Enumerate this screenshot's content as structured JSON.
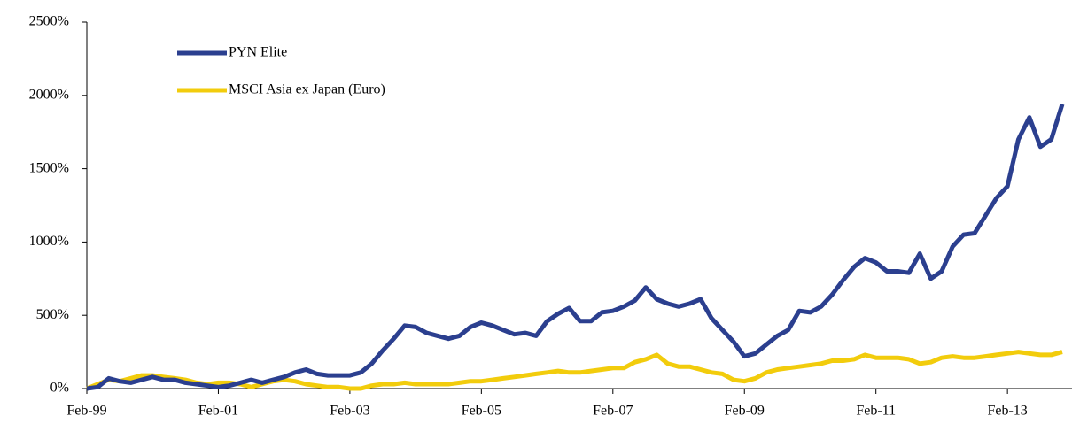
{
  "chart_data": {
    "type": "line",
    "categories": [
      "Feb-99",
      null,
      null,
      null,
      null,
      null,
      null,
      null,
      null,
      null,
      null,
      null,
      "Feb-01",
      null,
      null,
      null,
      null,
      null,
      null,
      null,
      null,
      null,
      null,
      null,
      "Feb-03",
      null,
      null,
      null,
      null,
      null,
      null,
      null,
      null,
      null,
      null,
      null,
      "Feb-05",
      null,
      null,
      null,
      null,
      null,
      null,
      null,
      null,
      null,
      null,
      null,
      "Feb-07",
      null,
      null,
      null,
      null,
      null,
      null,
      null,
      null,
      null,
      null,
      null,
      "Feb-09",
      null,
      null,
      null,
      null,
      null,
      null,
      null,
      null,
      null,
      null,
      null,
      "Feb-11",
      null,
      null,
      null,
      null,
      null,
      null,
      null,
      null,
      null,
      null,
      null,
      "Feb-13",
      null,
      null,
      null,
      null,
      null
    ],
    "series": [
      {
        "name": "PYN Elite",
        "color": "#2b3f8f",
        "values": [
          0,
          10,
          70,
          50,
          40,
          60,
          80,
          60,
          60,
          40,
          30,
          20,
          10,
          20,
          40,
          60,
          40,
          60,
          80,
          110,
          130,
          100,
          90,
          90,
          90,
          110,
          170,
          260,
          340,
          430,
          420,
          380,
          360,
          340,
          360,
          420,
          450,
          430,
          400,
          370,
          380,
          360,
          460,
          510,
          550,
          460,
          460,
          520,
          530,
          560,
          600,
          690,
          610,
          580,
          560,
          580,
          610,
          480,
          400,
          320,
          220,
          240,
          300,
          360,
          400,
          530,
          520,
          560,
          640,
          740,
          830,
          890,
          860,
          800,
          800,
          790,
          920,
          750,
          800,
          970,
          1050,
          1060,
          1180,
          1300,
          1380,
          1700,
          1850,
          1650,
          1700,
          1940
        ]
      },
      {
        "name": "MSCI Asia ex Japan (Euro)",
        "color": "#f2cc0c",
        "values": [
          0,
          30,
          60,
          50,
          70,
          90,
          90,
          80,
          70,
          60,
          40,
          30,
          40,
          40,
          30,
          10,
          30,
          50,
          60,
          50,
          30,
          20,
          10,
          10,
          0,
          0,
          20,
          30,
          30,
          40,
          30,
          30,
          30,
          30,
          40,
          50,
          50,
          60,
          70,
          80,
          90,
          100,
          110,
          120,
          110,
          110,
          120,
          130,
          140,
          140,
          180,
          200,
          230,
          170,
          150,
          150,
          130,
          110,
          100,
          60,
          50,
          70,
          110,
          130,
          140,
          150,
          160,
          170,
          190,
          190,
          200,
          230,
          210,
          210,
          210,
          200,
          170,
          180,
          210,
          220,
          210,
          210,
          220,
          230,
          240,
          250,
          240,
          230,
          230,
          250
        ]
      }
    ],
    "ylim": [
      0,
      2500
    ],
    "yticks": [
      {
        "value": 0,
        "label": "0%"
      },
      {
        "value": 500,
        "label": "500%"
      },
      {
        "value": 1000,
        "label": "1000%"
      },
      {
        "value": 1500,
        "label": "1500%"
      },
      {
        "value": 2000,
        "label": "2000%"
      },
      {
        "value": 2500,
        "label": "2500%"
      }
    ],
    "legend": "upper left"
  }
}
